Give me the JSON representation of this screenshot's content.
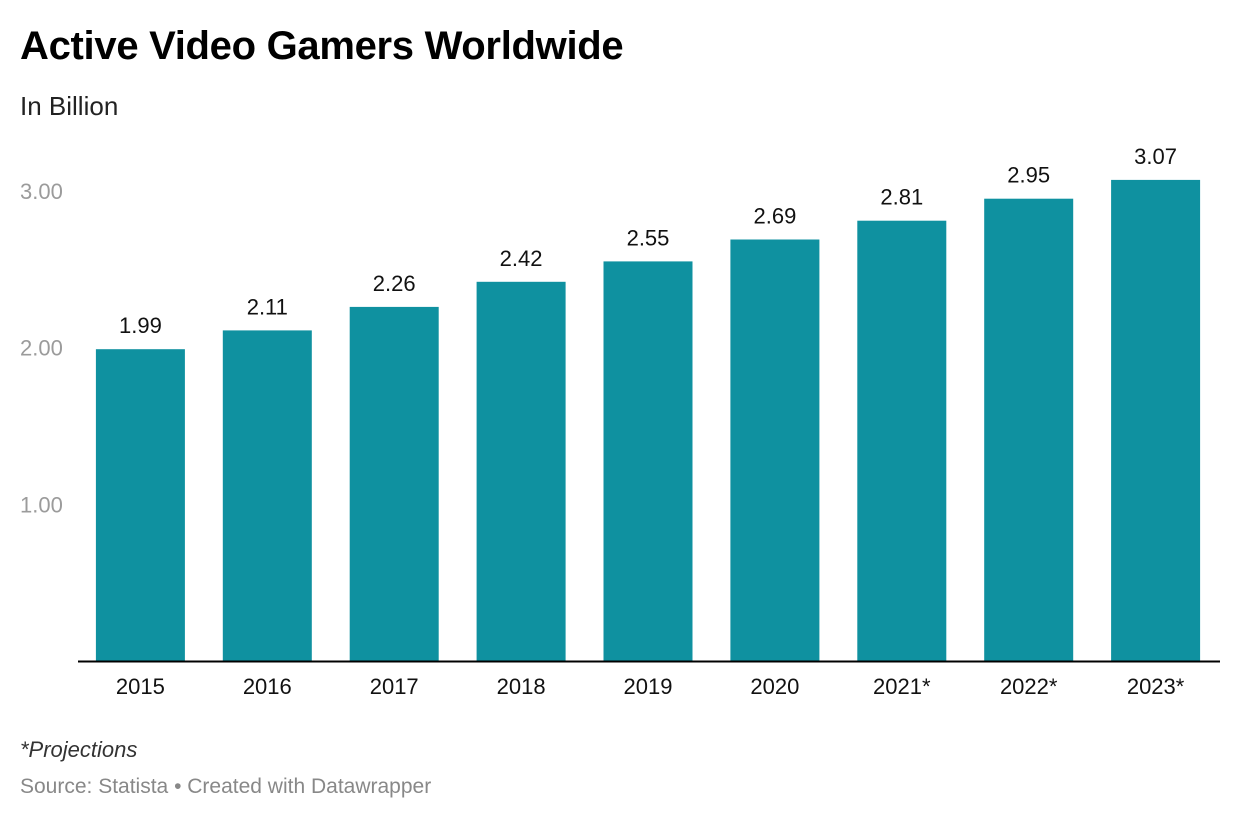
{
  "header": {
    "title": "Active Video Gamers Worldwide",
    "subtitle": "In Billion"
  },
  "footer": {
    "note": "*Projections",
    "source": "Source: Statista • Created with Datawrapper"
  },
  "colors": {
    "bar": "#0f91a0",
    "axis": "#000000",
    "tick_text": "#9b9b9b"
  },
  "chart_data": {
    "type": "bar",
    "title": "Active Video Gamers Worldwide",
    "subtitle": "In Billion",
    "categories": [
      "2015",
      "2016",
      "2017",
      "2018",
      "2019",
      "2020",
      "2021*",
      "2022*",
      "2023*"
    ],
    "values": [
      1.99,
      2.11,
      2.26,
      2.42,
      2.55,
      2.69,
      2.81,
      2.95,
      3.07
    ],
    "value_labels": [
      "1.99",
      "2.11",
      "2.26",
      "2.42",
      "2.55",
      "2.69",
      "2.81",
      "2.95",
      "3.07"
    ],
    "y_ticks": [
      1.0,
      2.0,
      3.0
    ],
    "y_tick_labels": [
      "1.00",
      "2.00",
      "3.00"
    ],
    "ylim": [
      0,
      3.2
    ],
    "xlabel": "",
    "ylabel": "",
    "grid": false,
    "legend": "none"
  }
}
